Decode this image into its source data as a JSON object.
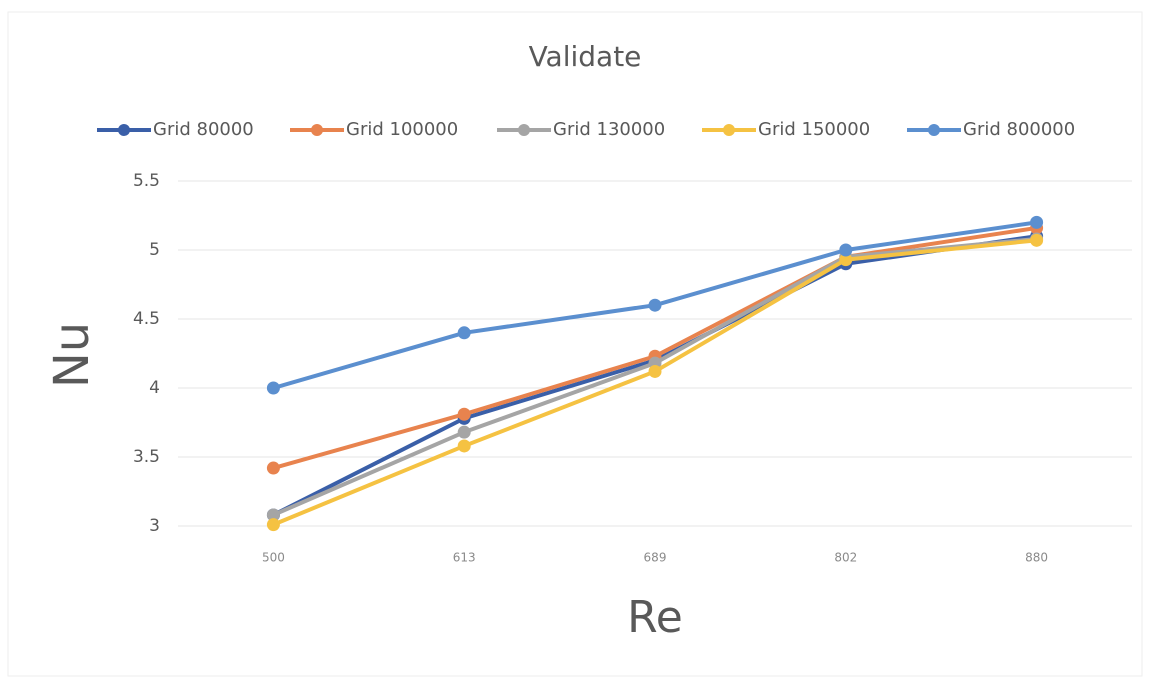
{
  "chart_data": {
    "type": "line",
    "title": "Validate",
    "xlabel": "Re",
    "ylabel": "Nu",
    "categories": [
      "500",
      "613",
      "689",
      "802",
      "880"
    ],
    "series": [
      {
        "name": "Grid 80000",
        "color": "#3a5fa8",
        "values": [
          3.08,
          3.78,
          4.2,
          4.9,
          5.1
        ]
      },
      {
        "name": "Grid 100000",
        "color": "#e8834e",
        "values": [
          3.42,
          3.81,
          4.23,
          4.95,
          5.16
        ]
      },
      {
        "name": "Grid 130000",
        "color": "#a5a5a5",
        "values": [
          3.08,
          3.68,
          4.18,
          4.95,
          5.08
        ]
      },
      {
        "name": "Grid 150000",
        "color": "#f5c242",
        "values": [
          3.01,
          3.58,
          4.12,
          4.93,
          5.07
        ]
      },
      {
        "name": "Grid 800000",
        "color": "#5b8fcf",
        "values": [
          4.0,
          4.4,
          4.6,
          5.0,
          5.2
        ]
      }
    ],
    "ylim": [
      3,
      5.5
    ],
    "yticks": [
      3,
      3.5,
      4,
      4.5,
      5,
      5.5
    ],
    "grid": true,
    "legend": "top"
  }
}
